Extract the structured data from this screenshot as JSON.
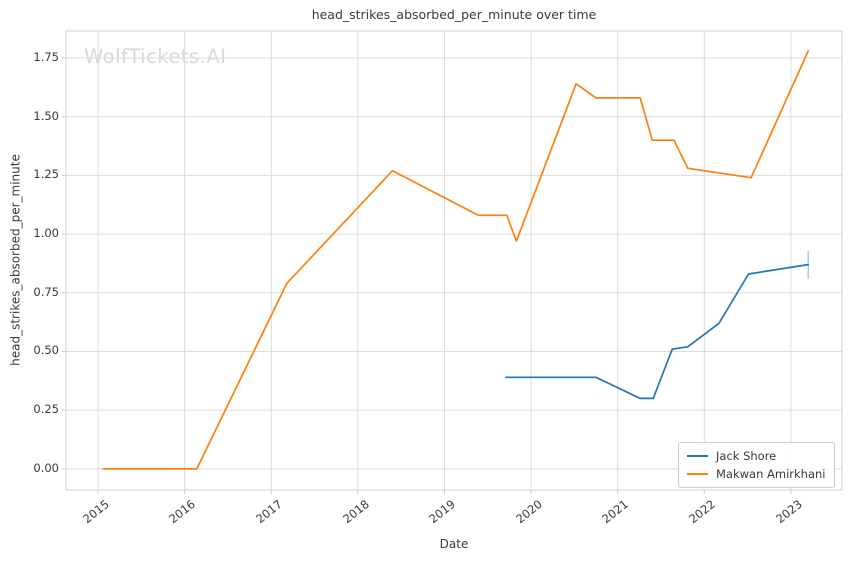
{
  "watermark": "WolfTickets.AI",
  "colors": {
    "blue": "#1f77b4",
    "orange": "#ff7f0e",
    "grid": "#dcdcdc",
    "frame": "#d0d0d0",
    "tick": "#cccccc",
    "text": "#3a3a3a",
    "watermark": "#d8d8d8",
    "legend_border": "#cccccc",
    "end_cap": "#a9cce3"
  },
  "chart_data": {
    "type": "line",
    "title": "head_strikes_absorbed_per_minute over time",
    "xlabel": "Date",
    "ylabel": "head_strikes_absorbed_per_minute",
    "grid": true,
    "legend_position": "lower right",
    "xlim": [
      2014.63,
      2023.59
    ],
    "ylim": [
      -0.09,
      1.865
    ],
    "x_ticks": [
      2015,
      2016,
      2017,
      2018,
      2019,
      2020,
      2021,
      2022,
      2023
    ],
    "y_tick_values": [
      0.0,
      0.25,
      0.5,
      0.75,
      1.0,
      1.25,
      1.5,
      1.75
    ],
    "y_tick_labels": [
      "0.00",
      "0.25",
      "0.50",
      "0.75",
      "1.00",
      "1.25",
      "1.50",
      "1.75"
    ],
    "series": [
      {
        "name": "Jack Shore",
        "color": "#1f77b4",
        "x": [
          2019.71,
          2020.75,
          2021.26,
          2021.41,
          2021.63,
          2021.81,
          2022.17,
          2022.51,
          2023.2
        ],
        "y": [
          0.39,
          0.39,
          0.3,
          0.3,
          0.51,
          0.52,
          0.62,
          0.83,
          0.87
        ],
        "end_cap": true
      },
      {
        "name": "Makwan Amirkhani",
        "color": "#ff7f0e",
        "x": [
          2015.06,
          2016.14,
          2017.18,
          2018.4,
          2019.39,
          2019.72,
          2019.83,
          2020.52,
          2020.75,
          2021.26,
          2021.4,
          2021.65,
          2021.81,
          2022.54,
          2023.2
        ],
        "y": [
          0.0,
          0.0,
          0.79,
          1.27,
          1.08,
          1.08,
          0.97,
          1.64,
          1.58,
          1.58,
          1.4,
          1.4,
          1.28,
          1.24,
          1.78
        ],
        "end_cap": false
      }
    ]
  }
}
